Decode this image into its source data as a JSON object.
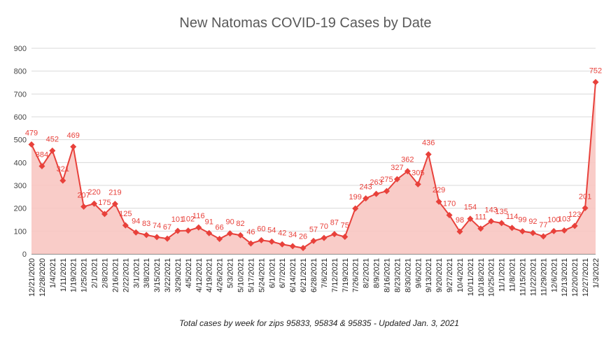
{
  "colors": {
    "line": "#e8413b",
    "fill": "#f8c6c2",
    "grid": "#d9d9d9",
    "label": "#e8413b"
  },
  "chart_data": {
    "type": "area",
    "title": "New Natomas COVID-19 Cases by Date",
    "subtitle": "Total cases by week for zips 95833, 95834 & 95835 - Updated Jan. 3, 2021",
    "xlabel": "",
    "ylabel": "",
    "ylim": [
      0,
      900
    ],
    "yticks": [
      0,
      100,
      200,
      300,
      400,
      500,
      600,
      700,
      800,
      900
    ],
    "grid": true,
    "marker": "diamond",
    "categories": [
      "12/21/2020",
      "12/28/2020",
      "1/4/2021",
      "1/11/2021",
      "1/19/2021",
      "1/25/2021",
      "2/1/2021",
      "2/8/2021",
      "2/16/2021",
      "2/22/2021",
      "3/1/2021",
      "3/8/2021",
      "3/15/2021",
      "3/22/2021",
      "3/29/2021",
      "4/5/2021",
      "4/12/2021",
      "4/19/2021",
      "4/26/2021",
      "5/3/2021",
      "5/10/2021",
      "5/17/2021",
      "5/24/2021",
      "6/1/2021",
      "6/7/2021",
      "6/14/2021",
      "6/21/2021",
      "6/28/2021",
      "7/6/2021",
      "7/12/2021",
      "7/19/2021",
      "7/26/2021",
      "8/2/2021",
      "8/9/2021",
      "8/16/2021",
      "8/23/2021",
      "8/30/2021",
      "9/6/2021",
      "9/13/2021",
      "9/20/2021",
      "9/27/2021",
      "10/4/2021",
      "10/11/2021",
      "10/18/2021",
      "10/25/2021",
      "11/1/2021",
      "11/8/2021",
      "11/15/2021",
      "11/22/2021",
      "11/29/2021",
      "12/6/2021",
      "12/13/2021",
      "12/20/2021",
      "12/27/2021",
      "1/3/2022"
    ],
    "xtick_labels": [
      "12/21/2020",
      "12/28/2020",
      "1/4/2021",
      "1/11/2021",
      "1/19/2021",
      "1/25/2021",
      "2/1/2021",
      "2/8/2021",
      "2/16/2021",
      "2/22/2021",
      "3/1/2021",
      "3/8/2021",
      "3/15/2021",
      "3/22/2021",
      "3/29/2021",
      "4/5/2021",
      "4/12/2021",
      "4/19/2021",
      "4/26/2021",
      "5/3/2021",
      "5/10/2021",
      "5/17/2021",
      "5/24/2021",
      "6/1/2021",
      "6/7/2021",
      "6/14/2021",
      "6/21/2021",
      "6/28/2021",
      "7/6/2021",
      "7/12/2021",
      "7/19/2021",
      "7/26/2021",
      "8/2/2021",
      "8/9/2021",
      "8/16/2021",
      "8/23/2021",
      "8/30/2021",
      "9/6/2021",
      "9/13/2021",
      "9/20/2021",
      "9/27/2021",
      "10/4/2021",
      "10/11/2021",
      "10/18/2021",
      "10/25/2021",
      "11/1/2021",
      "11/8/2021",
      "11/15/2021",
      "11/22/2021",
      "11/29/2021",
      "12/6/2021",
      "12/13/2021",
      "12/20/2021",
      "12/27/2021",
      "1/3/2022"
    ],
    "series": [
      {
        "values": [
          479,
          384,
          452,
          321,
          469,
          207,
          220,
          175,
          219,
          125,
          94,
          83,
          74,
          67,
          101,
          102,
          116,
          91,
          66,
          90,
          82,
          46,
          60,
          54,
          42,
          34,
          26,
          57,
          70,
          87,
          75,
          199,
          243,
          263,
          275,
          327,
          362,
          305,
          436,
          229,
          170,
          98,
          154,
          111,
          143,
          135,
          114,
          99,
          92,
          77,
          100,
          103,
          123,
          201,
          752
        ],
        "data_labels": [
          "479",
          "384",
          "452",
          "321",
          "469",
          "207",
          "220",
          "175",
          "219",
          "125",
          "94",
          "83",
          "74",
          "67",
          "101",
          "102",
          "116",
          "91",
          "66",
          "90",
          "82",
          "46",
          "60",
          "54",
          "42",
          "34",
          "26",
          "57",
          "70",
          "87",
          "75",
          "199",
          "243",
          "263",
          "275",
          "327",
          "362",
          "305",
          "436",
          "229",
          "170",
          "98",
          "154",
          "111",
          "143",
          "135",
          "114",
          "99",
          "92",
          "77",
          "100",
          "103",
          "123",
          "201",
          "752"
        ]
      }
    ]
  }
}
